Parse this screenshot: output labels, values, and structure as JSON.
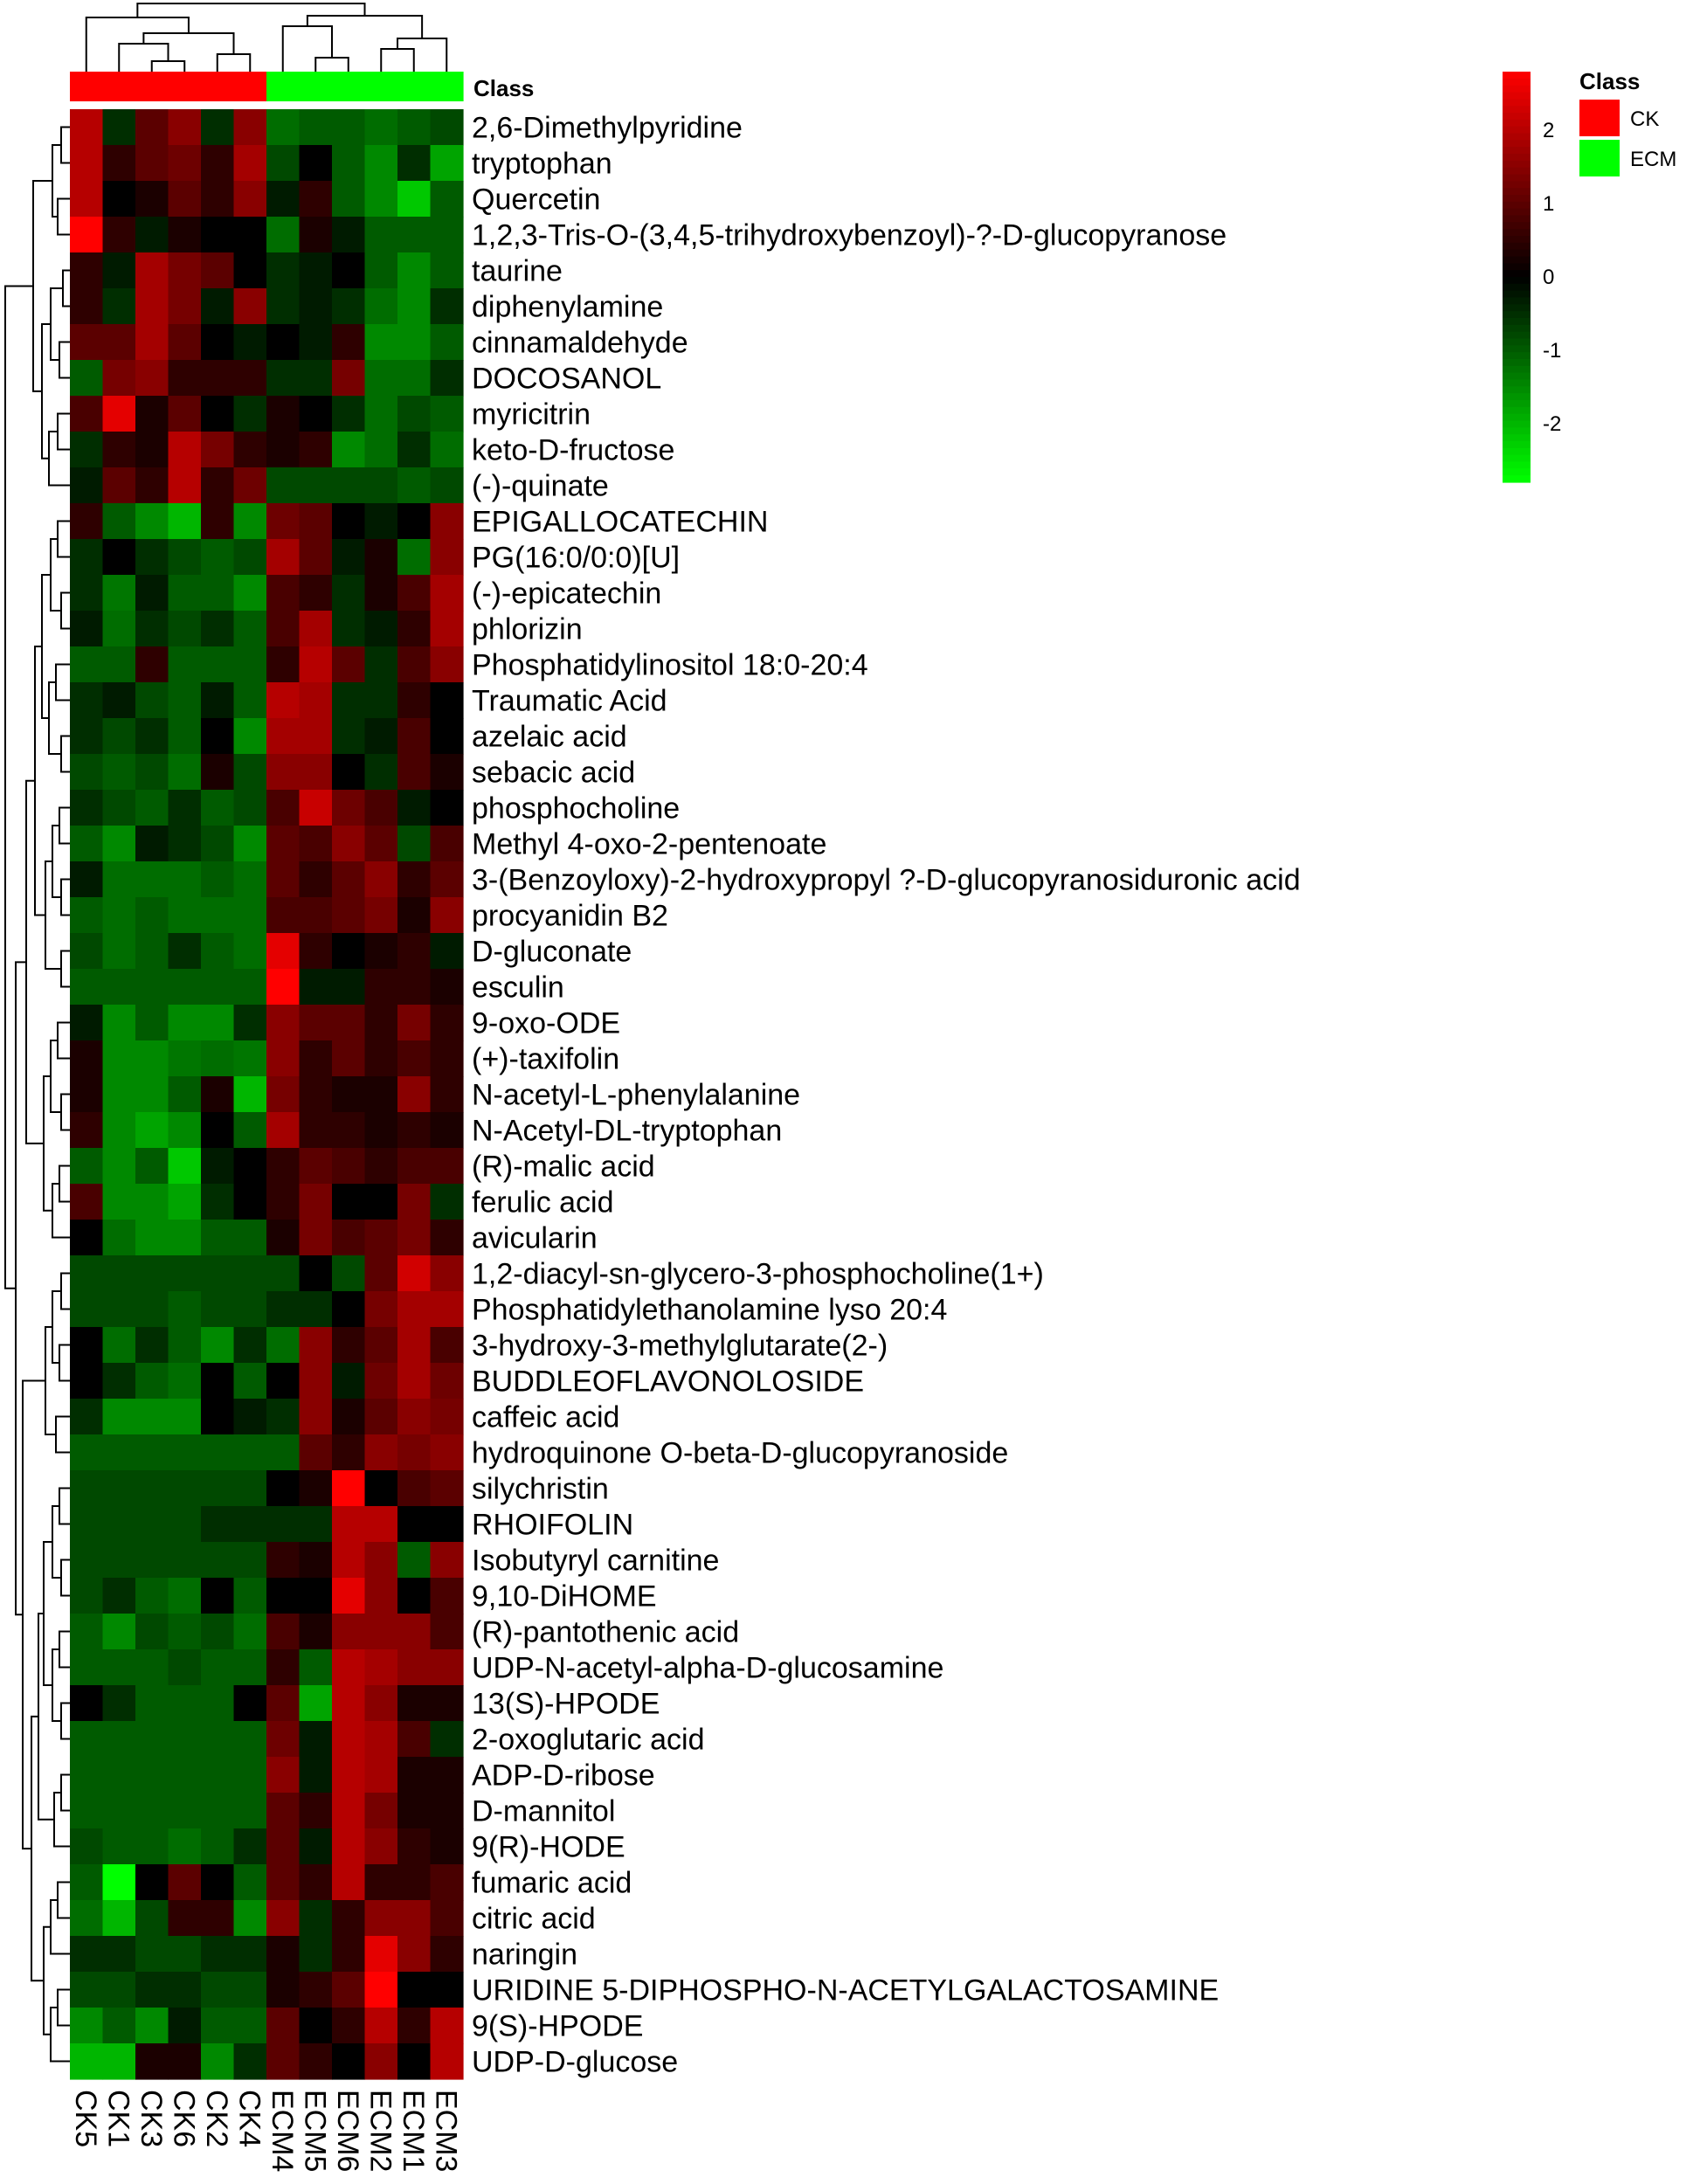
{
  "chart_data": {
    "type": "heatmap",
    "title": "",
    "xlabel": "",
    "ylabel": "",
    "columns": [
      "CK5",
      "CK1",
      "CK3",
      "CK6",
      "CK2",
      "CK4",
      "ECM4",
      "ECM5",
      "ECM6",
      "ECM2",
      "ECM1",
      "ECM3"
    ],
    "column_class": [
      "CK",
      "CK",
      "CK",
      "CK",
      "CK",
      "CK",
      "ECM",
      "ECM",
      "ECM",
      "ECM",
      "ECM",
      "ECM"
    ],
    "rows": [
      "2,6-Dimethylpyridine",
      "tryptophan",
      "Quercetin",
      "1,2,3-Tris-O-(3,4,5-trihydroxybenzoyl)-?-D-glucopyranose",
      "taurine",
      "diphenylamine",
      "cinnamaldehyde",
      "DOCOSANOL",
      "myricitrin",
      "keto-D-fructose",
      "(-)-quinate",
      "EPIGALLOCATECHIN",
      "PG(16:0/0:0)[U]",
      "(-)-epicatechin",
      "phlorizin",
      "Phosphatidylinositol 18:0-20:4",
      "Traumatic Acid",
      "azelaic acid",
      "sebacic acid",
      "phosphocholine",
      "Methyl 4-oxo-2-pentenoate",
      "3-(Benzoyloxy)-2-hydroxypropyl ?-D-glucopyranosiduronic acid",
      "procyanidin B2",
      "D-gluconate",
      "esculin",
      "9-oxo-ODE",
      "(+)-taxifolin",
      "N-acetyl-L-phenylalanine",
      "N-Acetyl-DL-tryptophan",
      "(R)-malic acid",
      "ferulic acid",
      "avicularin",
      "1,2-diacyl-sn-glycero-3-phosphocholine(1+)",
      "Phosphatidylethanolamine lyso 20:4",
      "3-hydroxy-3-methylglutarate(2-)",
      "BUDDLEOFLAVONOLOSIDE",
      "caffeic acid",
      "hydroquinone O-beta-D-glucopyranoside",
      "silychristin",
      "RHOIFOLIN",
      "Isobutyryl carnitine",
      "9,10-DiHOME",
      "(R)-pantothenic acid",
      "UDP-N-acetyl-alpha-D-glucosamine",
      "13(S)-HPODE",
      "2-oxoglutaric acid",
      "ADP-D-ribose",
      "D-mannitol",
      "9(R)-HODE",
      "fumaric acid",
      "citric acid",
      "naringin",
      "URIDINE 5-DIPHOSPHO-N-ACETYLGALACTOSAMINE",
      "9(S)-HPODE",
      "UDP-D-glucose"
    ],
    "values": [
      [
        2.0,
        -0.5,
        1.0,
        1.5,
        -0.5,
        1.5,
        -1.2,
        -1.0,
        -1.0,
        -1.2,
        -1.0,
        -0.8
      ],
      [
        2.0,
        0.5,
        1.0,
        1.2,
        0.5,
        1.8,
        -0.8,
        0.0,
        -1.0,
        -1.5,
        -0.5,
        -1.8
      ],
      [
        2.0,
        0.0,
        0.3,
        1.0,
        0.5,
        1.5,
        -0.3,
        0.5,
        -1.0,
        -1.5,
        -2.2,
        -1.0
      ],
      [
        2.8,
        0.5,
        -0.3,
        0.3,
        0.0,
        0.0,
        -1.2,
        0.3,
        -0.3,
        -1.0,
        -1.0,
        -1.0
      ],
      [
        0.5,
        -0.3,
        1.8,
        1.3,
        1.0,
        0.0,
        -0.5,
        -0.3,
        0.0,
        -1.0,
        -1.5,
        -1.0
      ],
      [
        0.5,
        -0.5,
        1.8,
        1.3,
        -0.3,
        1.5,
        -0.5,
        -0.3,
        -0.5,
        -1.2,
        -1.5,
        -0.5
      ],
      [
        1.0,
        1.0,
        1.8,
        1.0,
        0.0,
        -0.3,
        0.0,
        -0.3,
        0.5,
        -1.5,
        -1.5,
        -1.0
      ],
      [
        -1.0,
        1.3,
        1.5,
        0.5,
        0.5,
        0.5,
        -0.5,
        -0.5,
        1.3,
        -1.2,
        -1.2,
        -0.5
      ],
      [
        0.8,
        2.5,
        0.3,
        1.0,
        0.0,
        -0.5,
        0.3,
        0.0,
        -0.5,
        -1.2,
        -0.8,
        -1.0
      ],
      [
        -0.5,
        0.5,
        0.3,
        2.0,
        1.3,
        0.5,
        0.3,
        0.5,
        -1.5,
        -1.2,
        -0.5,
        -1.2
      ],
      [
        -0.3,
        1.0,
        0.5,
        2.0,
        0.5,
        1.2,
        -0.8,
        -0.8,
        -0.8,
        -0.8,
        -1.0,
        -0.8
      ],
      [
        0.5,
        -1.0,
        -1.5,
        -2.0,
        0.5,
        -1.5,
        1.2,
        1.0,
        0.0,
        -0.3,
        0.0,
        1.5
      ],
      [
        -0.5,
        0.0,
        -0.5,
        -0.8,
        -1.0,
        -0.8,
        1.8,
        1.0,
        -0.3,
        0.3,
        -1.2,
        1.5
      ],
      [
        -0.5,
        -1.3,
        -0.3,
        -1.0,
        -1.0,
        -1.5,
        0.8,
        0.5,
        -0.5,
        0.3,
        0.8,
        1.8
      ],
      [
        -0.3,
        -1.2,
        -0.5,
        -0.8,
        -0.5,
        -1.0,
        0.8,
        1.8,
        -0.5,
        -0.3,
        0.5,
        1.8
      ],
      [
        -1.0,
        -1.0,
        0.5,
        -1.0,
        -1.0,
        -1.0,
        0.5,
        2.0,
        1.0,
        -0.5,
        0.8,
        1.5
      ],
      [
        -0.5,
        -0.3,
        -0.8,
        -1.0,
        -0.3,
        -1.0,
        2.0,
        1.8,
        -0.5,
        -0.5,
        0.5,
        0.0
      ],
      [
        -0.5,
        -0.8,
        -0.5,
        -1.0,
        0.0,
        -1.5,
        1.8,
        1.8,
        -0.5,
        -0.3,
        0.8,
        0.0
      ],
      [
        -0.8,
        -1.0,
        -0.8,
        -1.2,
        0.3,
        -0.8,
        1.5,
        1.5,
        0.0,
        -0.5,
        0.8,
        0.3
      ],
      [
        -0.5,
        -0.8,
        -1.0,
        -0.5,
        -1.0,
        -0.8,
        0.8,
        2.2,
        1.2,
        0.8,
        -0.3,
        0.0
      ],
      [
        -1.0,
        -1.5,
        -0.3,
        -0.5,
        -0.8,
        -1.5,
        1.0,
        0.8,
        1.5,
        1.0,
        -0.8,
        0.8
      ],
      [
        -0.3,
        -1.2,
        -1.2,
        -1.2,
        -1.0,
        -1.2,
        1.0,
        0.5,
        1.0,
        1.5,
        0.5,
        1.0
      ],
      [
        -1.0,
        -1.2,
        -1.0,
        -1.2,
        -1.2,
        -1.2,
        0.8,
        0.8,
        1.0,
        1.3,
        0.3,
        1.5
      ],
      [
        -0.8,
        -1.2,
        -1.0,
        -0.5,
        -1.0,
        -1.2,
        2.5,
        0.5,
        0.0,
        0.3,
        0.5,
        -0.3
      ],
      [
        -1.0,
        -1.0,
        -1.0,
        -1.0,
        -1.0,
        -1.0,
        2.8,
        -0.3,
        -0.3,
        0.5,
        0.5,
        0.3
      ],
      [
        -0.3,
        -1.5,
        -1.0,
        -1.5,
        -1.5,
        -0.5,
        1.5,
        1.0,
        1.0,
        0.5,
        1.3,
        0.5
      ],
      [
        0.3,
        -1.5,
        -1.5,
        -1.3,
        -1.2,
        -1.3,
        1.5,
        0.5,
        1.0,
        0.5,
        0.8,
        0.5
      ],
      [
        0.3,
        -1.5,
        -1.5,
        -1.0,
        0.3,
        -2.0,
        1.3,
        0.5,
        0.3,
        0.3,
        1.5,
        0.5
      ],
      [
        0.5,
        -1.5,
        -1.8,
        -1.5,
        0.0,
        -1.0,
        1.8,
        0.5,
        0.5,
        0.3,
        0.5,
        0.3
      ],
      [
        -1.0,
        -1.5,
        -1.0,
        -2.2,
        -0.3,
        0.0,
        0.5,
        1.0,
        0.8,
        0.5,
        0.8,
        0.8
      ],
      [
        0.8,
        -1.5,
        -1.5,
        -1.8,
        -0.5,
        0.0,
        0.5,
        1.3,
        0.0,
        0.0,
        1.3,
        -0.5
      ],
      [
        0.0,
        -1.2,
        -1.5,
        -1.5,
        -1.0,
        -1.0,
        0.3,
        1.3,
        0.8,
        1.0,
        1.3,
        0.5
      ],
      [
        -0.8,
        -0.8,
        -0.8,
        -0.8,
        -0.8,
        -0.8,
        -0.8,
        0.0,
        -0.8,
        1.0,
        2.3,
        1.5
      ],
      [
        -0.8,
        -0.8,
        -0.8,
        -1.0,
        -0.8,
        -0.8,
        -0.5,
        -0.5,
        0.0,
        1.3,
        1.8,
        1.8
      ],
      [
        0.0,
        -1.2,
        -0.5,
        -1.0,
        -1.5,
        -0.5,
        -1.2,
        1.5,
        0.5,
        1.0,
        1.8,
        0.8
      ],
      [
        0.0,
        -0.5,
        -1.0,
        -1.2,
        0.0,
        -1.0,
        0.0,
        1.5,
        -0.3,
        1.2,
        1.8,
        1.2
      ],
      [
        -0.5,
        -1.5,
        -1.5,
        -1.5,
        0.0,
        -0.3,
        -0.5,
        1.5,
        0.3,
        1.0,
        1.5,
        1.3
      ],
      [
        -1.0,
        -1.0,
        -1.0,
        -1.0,
        -1.0,
        -1.0,
        -1.0,
        1.0,
        0.5,
        1.5,
        1.3,
        1.5
      ],
      [
        -0.8,
        -0.8,
        -0.8,
        -0.8,
        -0.8,
        -0.8,
        0.0,
        0.3,
        2.8,
        0.0,
        0.8,
        1.0
      ],
      [
        -0.8,
        -0.8,
        -0.8,
        -0.8,
        -0.5,
        -0.5,
        -0.5,
        -0.5,
        2.0,
        2.0,
        0.0,
        0.0
      ],
      [
        -0.8,
        -0.8,
        -0.8,
        -0.8,
        -0.8,
        -0.8,
        0.5,
        0.3,
        2.0,
        1.5,
        -1.0,
        1.5
      ],
      [
        -0.8,
        -0.5,
        -1.0,
        -1.2,
        0.0,
        -1.0,
        0.0,
        0.0,
        2.5,
        1.5,
        0.0,
        0.8
      ],
      [
        -1.0,
        -1.5,
        -0.8,
        -1.0,
        -0.8,
        -1.2,
        0.8,
        0.3,
        1.5,
        1.5,
        1.5,
        0.8
      ],
      [
        -1.0,
        -1.0,
        -1.0,
        -0.8,
        -1.0,
        -1.0,
        0.5,
        -1.0,
        2.0,
        1.8,
        1.5,
        1.5
      ],
      [
        0.0,
        -0.5,
        -1.0,
        -1.0,
        -1.0,
        0.0,
        1.0,
        -1.8,
        2.0,
        1.5,
        0.3,
        0.3
      ],
      [
        -1.0,
        -1.0,
        -1.0,
        -1.0,
        -1.0,
        -1.0,
        1.2,
        -0.3,
        2.0,
        1.8,
        0.8,
        -0.5
      ],
      [
        -1.0,
        -1.0,
        -1.0,
        -1.0,
        -1.0,
        -1.0,
        1.5,
        -0.3,
        2.0,
        1.8,
        0.3,
        0.3
      ],
      [
        -1.0,
        -1.0,
        -1.0,
        -1.0,
        -1.0,
        -1.0,
        1.0,
        0.5,
        2.0,
        1.3,
        0.3,
        0.3
      ],
      [
        -0.8,
        -1.0,
        -1.0,
        -1.2,
        -1.0,
        -0.5,
        1.0,
        -0.3,
        2.0,
        1.5,
        0.5,
        0.3
      ],
      [
        -1.0,
        -2.8,
        0.0,
        1.0,
        0.0,
        -1.0,
        1.0,
        0.5,
        2.0,
        0.5,
        0.5,
        0.8
      ],
      [
        -1.2,
        -2.0,
        -0.8,
        0.5,
        0.5,
        -1.5,
        1.5,
        -0.5,
        0.5,
        1.5,
        1.5,
        0.8
      ],
      [
        -0.5,
        -0.5,
        -0.8,
        -0.8,
        -0.5,
        -0.5,
        0.3,
        -0.5,
        0.5,
        2.5,
        1.5,
        0.5
      ],
      [
        -0.8,
        -0.8,
        -0.5,
        -0.5,
        -0.8,
        -0.8,
        0.3,
        0.5,
        1.0,
        2.8,
        0.0,
        0.0
      ],
      [
        -1.5,
        -1.0,
        -1.5,
        -0.3,
        -1.0,
        -1.0,
        1.0,
        0.0,
        0.5,
        2.0,
        0.5,
        2.0
      ],
      [
        -2.0,
        -2.0,
        0.3,
        0.3,
        -1.5,
        -0.5,
        1.0,
        0.5,
        0.0,
        1.5,
        0.0,
        2.0
      ]
    ],
    "color_scale": {
      "min": -2.8,
      "max": 2.8,
      "low": "#00ff00",
      "mid": "#000000",
      "high": "#ff0000"
    },
    "colorbar_ticks": [
      "2",
      "1",
      "0",
      "-1",
      "-2"
    ],
    "legend": {
      "title": "Class",
      "entries": [
        {
          "label": "CK",
          "color": "#ff0000"
        },
        {
          "label": "ECM",
          "color": "#00ff00"
        }
      ],
      "placement": "top-right"
    },
    "class_bar_label": "Class"
  }
}
